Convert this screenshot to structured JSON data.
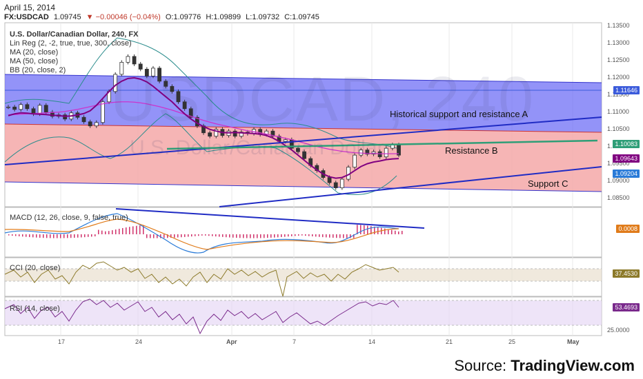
{
  "header": {
    "date": "April 15, 2014",
    "symbol": "FX:USDCAD",
    "last": "1.09745",
    "change": "▼ −0.00046 (−0.04%)",
    "open": "O:1.09776",
    "high": "H:1.09899",
    "low": "L:1.09732",
    "close": "C:1.09745"
  },
  "main_pane": {
    "title": "U.S. Dollar/Canadian Dollar, 240, FX",
    "indicators": [
      "Lin Reg (2, -2, true, true, 300, close)",
      "MA (20, close)",
      "MA (50, close)",
      "BB (20, close, 2)"
    ],
    "watermark": "USDCAD, 240",
    "watermark_sub": "U.S. Dollar/Canadian Dollar",
    "annotations": [
      "Historical support and resistance A",
      "Resistance B",
      "Support C"
    ]
  },
  "macd_pane": {
    "label": "MACD (12, 26, close, 9, false, true)",
    "value": "0.0008"
  },
  "cci_pane": {
    "label": "CCI (20, close)",
    "value": "37.4530"
  },
  "rsi_pane": {
    "label": "RSI (14, close)",
    "value": "53.4693",
    "tick": "25.0000"
  },
  "x_axis": [
    "17",
    "24",
    "Apr",
    "7",
    "14",
    "21",
    "25",
    "May"
  ],
  "source": {
    "prefix": "Source: ",
    "brand": "TradingView.com"
  },
  "colors": {
    "blue_channel": "#6f6ff5",
    "red_channel": "#f4a8a8",
    "trendline": "#1f2bc4",
    "resistance_b": "#2e9e77",
    "ma20": "#800080",
    "ma50": "#cc33cc",
    "bb": "#2a8c8c",
    "macd": "#2a7bd8",
    "signal": "#e07b1a",
    "hist": "#d0306a",
    "cci": "#8c7a2a",
    "rsi": "#7a2a8c"
  },
  "chart_data": {
    "type": "line",
    "title": "U.S. Dollar/Canadian Dollar, 240, FX",
    "xlabel": "",
    "ylabel": "",
    "ylim": [
      1.0825,
      1.136
    ],
    "y_ticks": [
      "1.13500",
      "1.13000",
      "1.12500",
      "1.12000",
      "1.11500",
      "1.11000",
      "1.10500",
      "1.10000",
      "1.09500",
      "1.09000",
      "1.08500"
    ],
    "y_tick_values": [
      1.135,
      1.13,
      1.125,
      1.12,
      1.115,
      1.11,
      1.105,
      1.1,
      1.095,
      1.09,
      1.085
    ],
    "price_labels": [
      {
        "text": "1.11646",
        "value": 1.11646,
        "color": "#3b5bdb"
      },
      {
        "text": "1.10083",
        "value": 1.10083,
        "color": "#2e9e77"
      },
      {
        "text": "1.09643",
        "value": 1.09643,
        "color": "#800080"
      },
      {
        "text": "1.09204",
        "value": 1.09204,
        "color": "#2a7bd8"
      }
    ],
    "series": [
      {
        "name": "USDCAD",
        "values": [
          1.1115,
          1.1108,
          1.1122,
          1.111,
          1.1095,
          1.112,
          1.11,
          1.1088,
          1.1092,
          1.108,
          1.1098,
          1.1085,
          1.1072,
          1.106,
          1.107,
          1.113,
          1.116,
          1.121,
          1.1245,
          1.1262,
          1.124,
          1.1225,
          1.1205,
          1.1228,
          1.119,
          1.1175,
          1.116,
          1.113,
          1.111,
          1.1085,
          1.106,
          1.104,
          1.103,
          1.105,
          1.1032,
          1.1045,
          1.103,
          1.1042,
          1.1038,
          1.105,
          1.1035,
          1.1045,
          1.103,
          1.1015,
          1.102,
          1.0995,
          1.0985,
          1.0965,
          1.0945,
          1.093,
          1.091,
          1.0895,
          1.088,
          1.0905,
          1.094,
          1.0975,
          1.099,
          1.0978,
          1.0985,
          1.097,
          1.0995,
          1.1005,
          1.0975
        ]
      },
      {
        "name": "MA (20, close)",
        "values": [
          1.109,
          1.1095,
          1.1098,
          1.1097,
          1.1095,
          1.1094,
          1.1093,
          1.1091,
          1.109,
          1.1088,
          1.1089,
          1.1092,
          1.1096,
          1.1104,
          1.112,
          1.114,
          1.116,
          1.1178,
          1.119,
          1.1198,
          1.12,
          1.1196,
          1.1188,
          1.1175,
          1.116,
          1.1145,
          1.113,
          1.1112,
          1.1095,
          1.108,
          1.1068,
          1.1058,
          1.105,
          1.1045,
          1.1041,
          1.104,
          1.1041,
          1.104,
          1.1039,
          1.1038,
          1.1036,
          1.1032,
          1.1025,
          1.1015,
          1.1003,
          1.099,
          1.0975,
          1.096,
          1.0945,
          1.0932,
          1.092,
          1.0912,
          1.0908,
          1.091,
          1.0918,
          1.093,
          1.0942,
          1.095,
          1.0955,
          1.0958,
          1.0962,
          1.0964,
          1.0965
        ]
      },
      {
        "name": "MA (50, close)",
        "values": [
          1.1092,
          1.1093,
          1.1094,
          1.1095,
          1.1096,
          1.1097,
          1.1098,
          1.1099,
          1.11,
          1.1102,
          1.1105,
          1.1108,
          1.1112,
          1.1116,
          1.112,
          1.1124,
          1.1127,
          1.1129,
          1.113,
          1.113,
          1.1129,
          1.1127,
          1.1124,
          1.112,
          1.1116,
          1.1111,
          1.1106,
          1.11,
          1.1094,
          1.1088,
          1.1082,
          1.1076,
          1.1071,
          1.1066,
          1.1062,
          1.1058,
          1.1054,
          1.105,
          1.1046,
          1.1043,
          1.104,
          1.1036,
          1.1032,
          1.1028,
          1.1024,
          1.102,
          1.1015,
          1.101,
          1.1005,
          1.1,
          1.0996,
          1.0992,
          1.0989,
          1.0986,
          1.0984,
          1.0982,
          1.0981,
          1.098,
          1.098,
          1.0979,
          1.0979,
          1.0979,
          1.0979
        ]
      }
    ]
  }
}
